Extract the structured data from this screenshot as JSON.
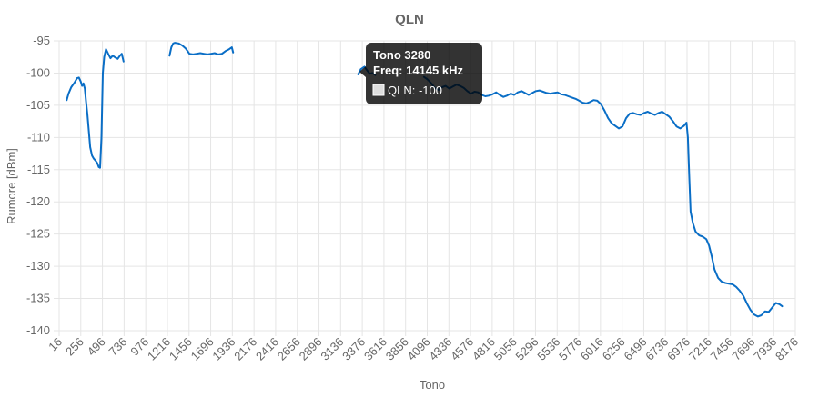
{
  "chart_data": {
    "type": "line",
    "title": "QLN",
    "xlabel": "Tono",
    "ylabel": "Rumore [dBm]",
    "xlim": [
      16,
      8176
    ],
    "ylim": [
      -140,
      -95
    ],
    "x_ticks": [
      16,
      256,
      496,
      736,
      976,
      1216,
      1456,
      1696,
      1936,
      2176,
      2416,
      2656,
      2896,
      3136,
      3376,
      3616,
      3856,
      4096,
      4336,
      4576,
      4816,
      5056,
      5296,
      5536,
      5776,
      6016,
      6256,
      6496,
      6736,
      6976,
      7216,
      7456,
      7696,
      7936,
      8176
    ],
    "y_ticks": [
      -95,
      -100,
      -105,
      -110,
      -115,
      -120,
      -125,
      -130,
      -135,
      -140
    ],
    "grid": true,
    "legend": "none",
    "series": [
      {
        "name": "QLN",
        "color": "#0a6ec6",
        "segments": [
          [
            [
              100,
              -104.2
            ],
            [
              120,
              -103.2
            ],
            [
              150,
              -102.2
            ],
            [
              185,
              -101.5
            ],
            [
              215,
              -100.8
            ],
            [
              235,
              -100.7
            ],
            [
              255,
              -101.3
            ],
            [
              270,
              -102.0
            ],
            [
              285,
              -101.6
            ],
            [
              300,
              -102.4
            ],
            [
              315,
              -104.5
            ],
            [
              330,
              -106.5
            ],
            [
              345,
              -109.0
            ],
            [
              360,
              -111.5
            ],
            [
              380,
              -112.8
            ],
            [
              400,
              -113.3
            ],
            [
              420,
              -113.6
            ],
            [
              440,
              -114.0
            ],
            [
              455,
              -114.6
            ],
            [
              470,
              -114.7
            ],
            [
              485,
              -110.0
            ],
            [
              500,
              -100.0
            ],
            [
              515,
              -97.5
            ],
            [
              535,
              -96.3
            ],
            [
              560,
              -97.0
            ],
            [
              585,
              -97.7
            ],
            [
              610,
              -97.3
            ],
            [
              640,
              -97.6
            ],
            [
              665,
              -97.8
            ],
            [
              690,
              -97.3
            ],
            [
              710,
              -97.0
            ],
            [
              730,
              -98.2
            ]
          ],
          [
            [
              1240,
              -97.3
            ],
            [
              1260,
              -96.0
            ],
            [
              1280,
              -95.4
            ],
            [
              1300,
              -95.3
            ],
            [
              1340,
              -95.4
            ],
            [
              1380,
              -95.7
            ],
            [
              1420,
              -96.2
            ],
            [
              1460,
              -97.0
            ],
            [
              1500,
              -97.1
            ],
            [
              1540,
              -97.0
            ],
            [
              1580,
              -96.9
            ],
            [
              1620,
              -97.0
            ],
            [
              1660,
              -97.1
            ],
            [
              1700,
              -97.0
            ],
            [
              1740,
              -96.9
            ],
            [
              1780,
              -97.1
            ],
            [
              1820,
              -97.0
            ],
            [
              1860,
              -96.6
            ],
            [
              1900,
              -96.3
            ],
            [
              1930,
              -96.0
            ],
            [
              1945,
              -96.8
            ]
          ],
          [
            [
              3330,
              -100.2
            ],
            [
              3360,
              -99.4
            ],
            [
              3400,
              -99.0
            ],
            [
              3430,
              -99.6
            ],
            [
              3460,
              -100.1
            ],
            [
              3490,
              -100.0
            ],
            [
              3520,
              -100.3
            ]
          ],
          [
            [
              4060,
              -100.6
            ],
            [
              4100,
              -101.0
            ],
            [
              4140,
              -101.6
            ],
            [
              4180,
              -102.3
            ],
            [
              4220,
              -102.6
            ],
            [
              4260,
              -102.2
            ],
            [
              4300,
              -102.0
            ],
            [
              4340,
              -102.4
            ],
            [
              4380,
              -102.1
            ],
            [
              4420,
              -101.8
            ],
            [
              4460,
              -102.0
            ],
            [
              4500,
              -102.3
            ],
            [
              4540,
              -102.8
            ],
            [
              4580,
              -103.2
            ],
            [
              4620,
              -102.9
            ],
            [
              4660,
              -103.0
            ],
            [
              4700,
              -103.4
            ],
            [
              4740,
              -103.6
            ],
            [
              4780,
              -103.5
            ],
            [
              4820,
              -103.3
            ],
            [
              4860,
              -103.0
            ],
            [
              4900,
              -103.4
            ],
            [
              4940,
              -103.7
            ],
            [
              4980,
              -103.5
            ],
            [
              5020,
              -103.2
            ],
            [
              5060,
              -103.4
            ],
            [
              5100,
              -103.0
            ],
            [
              5140,
              -102.8
            ],
            [
              5180,
              -103.1
            ],
            [
              5220,
              -103.4
            ],
            [
              5260,
              -103.1
            ],
            [
              5300,
              -102.8
            ],
            [
              5340,
              -102.7
            ],
            [
              5380,
              -102.9
            ],
            [
              5420,
              -103.1
            ],
            [
              5460,
              -103.2
            ],
            [
              5500,
              -103.1
            ],
            [
              5540,
              -103.0
            ],
            [
              5580,
              -103.3
            ],
            [
              5620,
              -103.4
            ],
            [
              5660,
              -103.6
            ],
            [
              5700,
              -103.8
            ],
            [
              5740,
              -104.0
            ],
            [
              5780,
              -104.3
            ],
            [
              5820,
              -104.6
            ],
            [
              5860,
              -104.7
            ],
            [
              5900,
              -104.5
            ],
            [
              5940,
              -104.2
            ],
            [
              5980,
              -104.3
            ],
            [
              6020,
              -104.8
            ],
            [
              6060,
              -105.8
            ],
            [
              6100,
              -107.0
            ],
            [
              6140,
              -107.8
            ],
            [
              6180,
              -108.2
            ],
            [
              6220,
              -108.6
            ],
            [
              6260,
              -108.3
            ],
            [
              6300,
              -107.0
            ],
            [
              6340,
              -106.3
            ],
            [
              6380,
              -106.2
            ],
            [
              6420,
              -106.4
            ],
            [
              6460,
              -106.5
            ],
            [
              6500,
              -106.2
            ],
            [
              6540,
              -106.0
            ],
            [
              6580,
              -106.3
            ],
            [
              6620,
              -106.5
            ],
            [
              6660,
              -106.2
            ],
            [
              6700,
              -106.0
            ],
            [
              6740,
              -106.4
            ],
            [
              6780,
              -106.8
            ],
            [
              6820,
              -107.5
            ],
            [
              6860,
              -108.3
            ],
            [
              6900,
              -108.6
            ],
            [
              6940,
              -108.2
            ],
            [
              6970,
              -107.7
            ],
            [
              6985,
              -110.0
            ],
            [
              7000,
              -116.0
            ],
            [
              7015,
              -121.5
            ],
            [
              7040,
              -123.3
            ],
            [
              7070,
              -124.6
            ],
            [
              7110,
              -125.2
            ],
            [
              7150,
              -125.4
            ],
            [
              7190,
              -125.8
            ],
            [
              7220,
              -126.8
            ],
            [
              7250,
              -128.5
            ],
            [
              7280,
              -130.5
            ],
            [
              7320,
              -131.8
            ],
            [
              7360,
              -132.4
            ],
            [
              7400,
              -132.6
            ],
            [
              7440,
              -132.7
            ],
            [
              7480,
              -132.8
            ],
            [
              7520,
              -133.2
            ],
            [
              7560,
              -133.8
            ],
            [
              7600,
              -134.6
            ],
            [
              7640,
              -135.8
            ],
            [
              7680,
              -136.8
            ],
            [
              7720,
              -137.5
            ],
            [
              7760,
              -137.8
            ],
            [
              7800,
              -137.6
            ],
            [
              7840,
              -137.0
            ],
            [
              7880,
              -137.1
            ],
            [
              7920,
              -136.4
            ],
            [
              7960,
              -135.7
            ],
            [
              8000,
              -135.9
            ],
            [
              8030,
              -136.2
            ]
          ]
        ]
      }
    ],
    "tooltip": {
      "title": "Tono 3280",
      "subtitle": "Freq: 14145 kHz",
      "label": "QLN: -100",
      "anchor": [
        3330,
        -100.2
      ]
    }
  }
}
